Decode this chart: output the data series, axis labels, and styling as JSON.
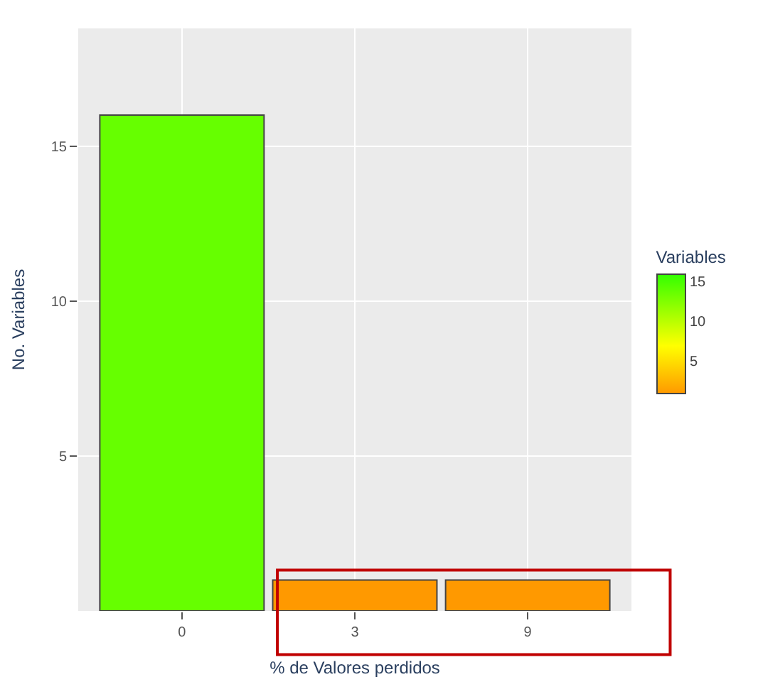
{
  "chart_data": {
    "type": "bar",
    "xlabel": "% de Valores perdidos",
    "ylabel": "No. Variables",
    "categories": [
      "0",
      "3",
      "9"
    ],
    "values": [
      16,
      1,
      1
    ],
    "colors": [
      "#66ff00",
      "#ff9900",
      "#ff9900"
    ],
    "ylim": [
      0,
      18.8
    ],
    "yticks": [
      5,
      10,
      15
    ],
    "clabel": "Variables",
    "clim": [
      1,
      16
    ],
    "cticks": [
      5,
      10,
      15
    ],
    "grid": true,
    "legend": false
  }
}
